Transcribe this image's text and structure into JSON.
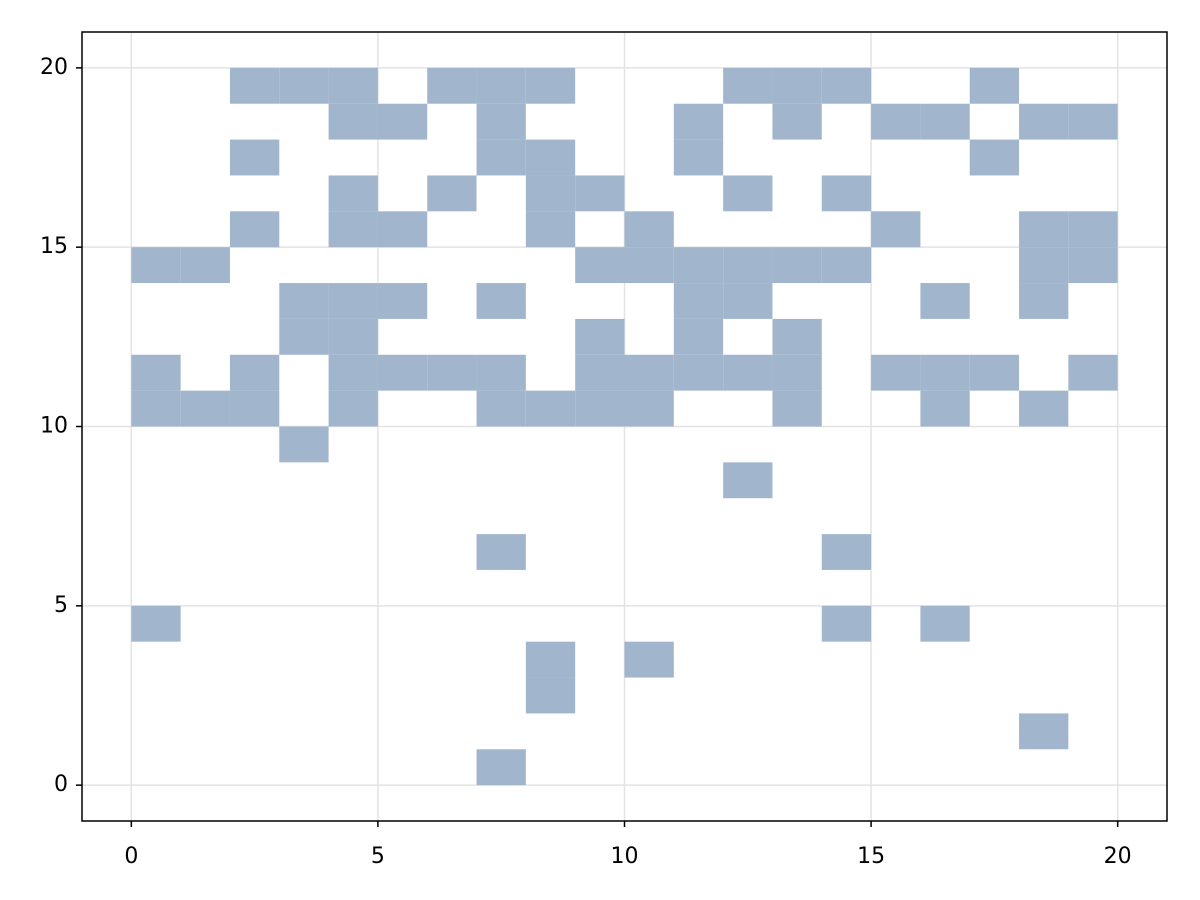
{
  "chart_data": {
    "type": "heatmap",
    "x": [
      2,
      3,
      4,
      6,
      7,
      8,
      12,
      13,
      14,
      17,
      4,
      5,
      7,
      11,
      13,
      15,
      16,
      18,
      19,
      2,
      7,
      8,
      11,
      17,
      4,
      6,
      8,
      9,
      12,
      14,
      2,
      4,
      5,
      8,
      10,
      15,
      18,
      19,
      0,
      1,
      9,
      10,
      11,
      12,
      13,
      14,
      18,
      19,
      3,
      4,
      5,
      7,
      11,
      12,
      16,
      18,
      3,
      4,
      9,
      11,
      13,
      0,
      2,
      4,
      5,
      6,
      7,
      9,
      10,
      11,
      12,
      13,
      15,
      16,
      17,
      19,
      0,
      1,
      2,
      4,
      7,
      8,
      9,
      10,
      13,
      16,
      18,
      3,
      12,
      7,
      14,
      0,
      14,
      16,
      8,
      10,
      8,
      18,
      7
    ],
    "y": [
      19,
      19,
      19,
      19,
      19,
      19,
      19,
      19,
      19,
      19,
      18,
      18,
      18,
      18,
      18,
      18,
      18,
      18,
      18,
      17,
      17,
      17,
      17,
      17,
      16,
      16,
      16,
      16,
      16,
      16,
      15,
      15,
      15,
      15,
      15,
      15,
      15,
      15,
      14,
      14,
      14,
      14,
      14,
      14,
      14,
      14,
      14,
      14,
      13,
      13,
      13,
      13,
      13,
      13,
      13,
      13,
      12,
      12,
      12,
      12,
      12,
      11,
      11,
      11,
      11,
      11,
      11,
      11,
      11,
      11,
      11,
      11,
      11,
      11,
      11,
      11,
      10,
      10,
      10,
      10,
      10,
      10,
      10,
      10,
      10,
      10,
      10,
      9,
      8,
      6,
      6,
      4,
      4,
      4,
      3,
      3,
      2,
      1,
      0
    ],
    "color": "#a1b6cd",
    "xlim": [
      -1,
      21
    ],
    "ylim": [
      -1,
      21
    ],
    "xticks": [
      0,
      5,
      10,
      15,
      20
    ],
    "yticks": [
      0,
      5,
      10,
      15,
      20
    ],
    "grid": true
  }
}
